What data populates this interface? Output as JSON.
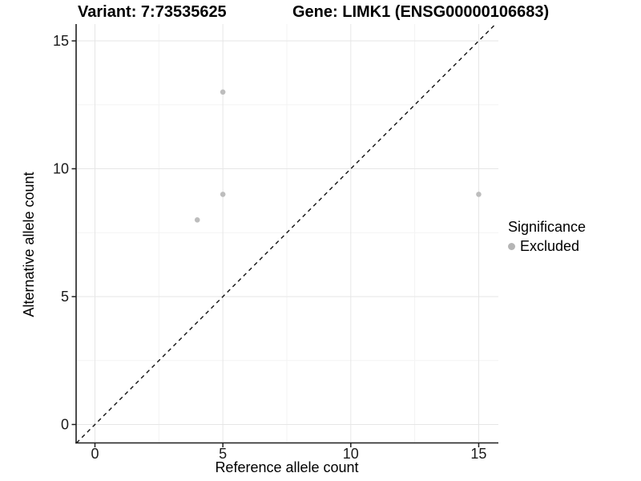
{
  "chart_data": {
    "type": "scatter",
    "title_left": "Variant: 7:73535625",
    "title_right": "Gene: LIMK1 (ENSG00000106683)",
    "xlabel": "Reference allele count",
    "ylabel": "Alternative allele count",
    "xlim": [
      -0.75,
      15.75
    ],
    "ylim": [
      -0.75,
      16.4
    ],
    "x_ticks": [
      0,
      5,
      10,
      15
    ],
    "y_ticks": [
      0,
      5,
      10,
      15
    ],
    "minor_gridlines": [
      2.5,
      7.5,
      12.5
    ],
    "grid": "on",
    "grid_color_major": "#e6e6e6",
    "grid_color_minor": "#f3f3f3",
    "axis_color": "#1f1f1f",
    "background": "#ffffff",
    "series": [
      {
        "name": "Excluded",
        "color": "#bdbdbd",
        "points": [
          [
            4,
            8
          ],
          [
            5,
            9
          ],
          [
            5,
            13
          ],
          [
            15,
            9
          ]
        ]
      }
    ],
    "reference_line": {
      "kind": "identity y=x",
      "style": "dashed",
      "color": "#111111"
    },
    "legend": {
      "title": "Significance",
      "position": "right",
      "entries": [
        {
          "label": "Excluded",
          "color": "#b5b5b5"
        }
      ]
    }
  }
}
